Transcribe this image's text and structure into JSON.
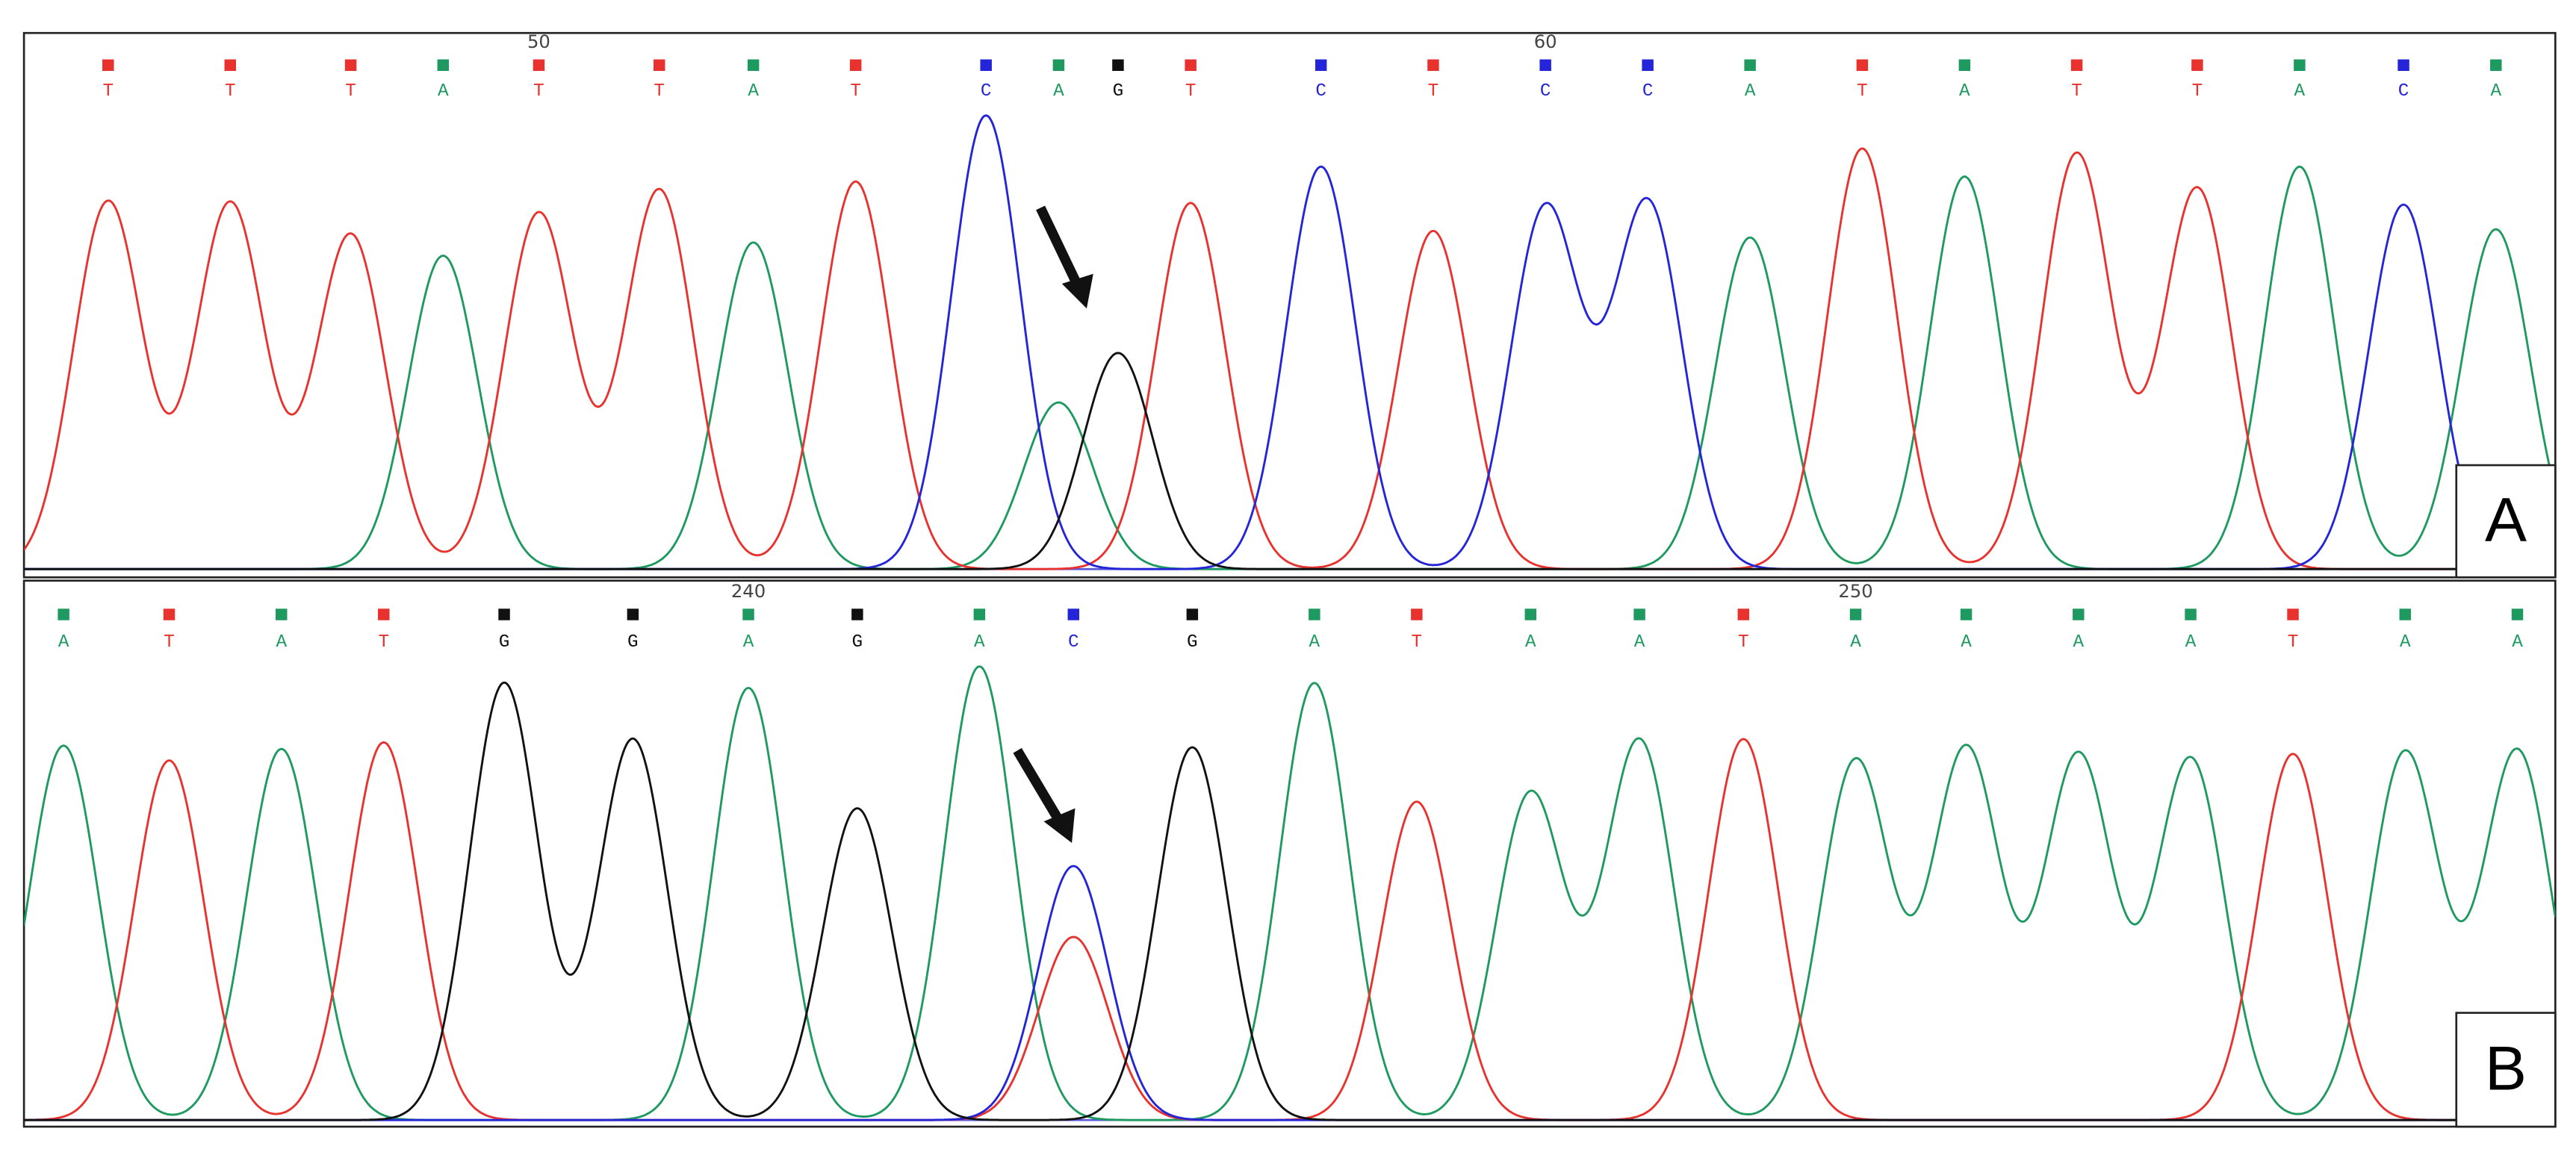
{
  "colors": {
    "A": "#1e9a60",
    "T": "#e8322d",
    "C": "#2424d8",
    "G": "#111111"
  },
  "panels": [
    {
      "label": "A",
      "calls": [
        "T",
        "T",
        "T",
        "A",
        "T",
        "T",
        "A",
        "T",
        "C",
        "A",
        "G",
        "T",
        "C",
        "T",
        "C",
        "C",
        "A",
        "T",
        "A",
        "T",
        "T",
        "A",
        "C",
        "A"
      ],
      "scan": [
        65,
        139,
        212,
        268,
        326,
        399,
        456,
        518,
        597,
        641,
        677,
        721,
        800,
        868,
        936,
        998,
        1060,
        1128,
        1190,
        1258,
        1331,
        1393,
        1456,
        1512
      ],
      "heights": [
        223,
        222,
        203,
        190,
        216,
        230,
        198,
        235,
        275,
        101,
        131,
        222,
        244,
        205,
        219,
        222,
        201,
        255,
        238,
        252,
        231,
        244,
        221,
        206
      ],
      "extra_peaks": [],
      "positions": [
        {
          "call": 4,
          "value": 50
        },
        {
          "call": 14,
          "value": 60
        }
      ]
    },
    {
      "label": "B",
      "calls": [
        "A",
        "T",
        "A",
        "T",
        "G",
        "G",
        "A",
        "G",
        "A",
        "C",
        "G",
        "A",
        "T",
        "A",
        "A",
        "T",
        "A",
        "A",
        "A",
        "A",
        "T",
        "A",
        "A"
      ],
      "scan": [
        38,
        102,
        170,
        232,
        305,
        383,
        453,
        519,
        593,
        650,
        722,
        796,
        858,
        927,
        993,
        1056,
        1124,
        1191,
        1259,
        1327,
        1389,
        1457,
        1525
      ],
      "heights": [
        227,
        218,
        225,
        229,
        265,
        231,
        262,
        189,
        275,
        154,
        226,
        265,
        193,
        198,
        230,
        231,
        218,
        225,
        221,
        219,
        222,
        223,
        224
      ],
      "extra_peaks": [
        {
          "base": "T",
          "scan": 650,
          "height": 111
        }
      ],
      "positions": [
        {
          "call": 6,
          "value": 240
        },
        {
          "call": 16,
          "value": 250
        }
      ]
    }
  ]
}
